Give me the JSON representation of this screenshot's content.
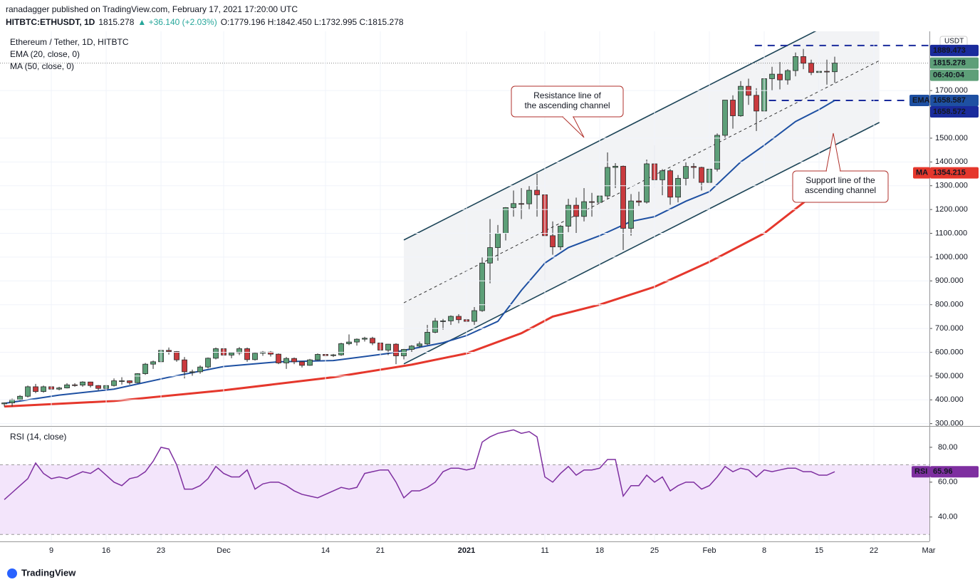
{
  "header": {
    "published": "ranadagger published on TradingView.com, February 17, 2021 17:20:00 UTC",
    "quote": [
      {
        "text": "HITBTC:ETHUSDT, 1D",
        "color": "#131722"
      },
      {
        "text": "1815.278",
        "color": "#131722"
      },
      {
        "text": "▲ +36.140 (+2.03%)",
        "color": "#26a69a"
      },
      {
        "text": "O:1779.196 H:1842.450 L:1732.995 C:1815.278",
        "color": "#131722"
      }
    ]
  },
  "footer": {
    "brand": "TradingView"
  },
  "chart_data": {
    "type": "candlestick",
    "legend": [
      "Ethereum / Tether, 1D, HITBTC",
      "EMA (20, close, 0)",
      "MA (50, close, 0)"
    ],
    "currency": "USDT",
    "countdown": "06:40:04",
    "up_color": "#5d9f78",
    "down_color": "#c93a3e",
    "xlim": [
      -0.55,
      118.09
    ],
    "ylim": [
      290,
      1949
    ],
    "xticks": [
      {
        "value": 6,
        "label": "9"
      },
      {
        "value": 13,
        "label": "16"
      },
      {
        "value": 20,
        "label": "23"
      },
      {
        "value": 28,
        "label": "Dec"
      },
      {
        "value": 41,
        "label": "14"
      },
      {
        "value": 48,
        "label": "21"
      },
      {
        "value": 59,
        "label": "2021"
      },
      {
        "value": 69,
        "label": "11"
      },
      {
        "value": 76,
        "label": "18"
      },
      {
        "value": 83,
        "label": "25"
      },
      {
        "value": 90,
        "label": "Feb"
      },
      {
        "value": 97,
        "label": "8"
      },
      {
        "value": 104,
        "label": "15"
      },
      {
        "value": 111,
        "label": "22"
      },
      {
        "value": 118,
        "label": "Mar"
      }
    ],
    "yticks": [
      {
        "value": 300,
        "label": "300.000"
      },
      {
        "value": 400,
        "label": "400.000"
      },
      {
        "value": 500,
        "label": "500.000"
      },
      {
        "value": 600,
        "label": "600.000"
      },
      {
        "value": 700,
        "label": "700.000"
      },
      {
        "value": 800,
        "label": "800.000"
      },
      {
        "value": 900,
        "label": "900.000"
      },
      {
        "value": 1000,
        "label": "1000.000"
      },
      {
        "value": 1100,
        "label": "1100.000"
      },
      {
        "value": 1200,
        "label": "1200.000"
      },
      {
        "value": 1300,
        "label": "1300.000"
      },
      {
        "value": 1400,
        "label": "1400.000"
      },
      {
        "value": 1500,
        "label": "1500.000"
      },
      {
        "value": 1700,
        "label": "1700.000"
      }
    ],
    "grid": true,
    "candles": [
      [
        383,
        389,
        372,
        387
      ],
      [
        387,
        405,
        372,
        401
      ],
      [
        401,
        420,
        395,
        415
      ],
      [
        415,
        460,
        410,
        455
      ],
      [
        455,
        467,
        428,
        435
      ],
      [
        435,
        460,
        430,
        455
      ],
      [
        455,
        460,
        432,
        445
      ],
      [
        445,
        455,
        440,
        450
      ],
      [
        450,
        470,
        448,
        463
      ],
      [
        463,
        470,
        455,
        462
      ],
      [
        462,
        478,
        455,
        475
      ],
      [
        475,
        476,
        452,
        460
      ],
      [
        460,
        462,
        440,
        448
      ],
      [
        448,
        465,
        443,
        460
      ],
      [
        460,
        490,
        456,
        480
      ],
      [
        480,
        495,
        464,
        480
      ],
      [
        480,
        482,
        464,
        472
      ],
      [
        472,
        512,
        470,
        510
      ],
      [
        510,
        555,
        505,
        550
      ],
      [
        550,
        565,
        530,
        560
      ],
      [
        560,
        615,
        552,
        608
      ],
      [
        608,
        620,
        590,
        603
      ],
      [
        603,
        605,
        560,
        568
      ],
      [
        568,
        580,
        490,
        518
      ],
      [
        518,
        527,
        500,
        518
      ],
      [
        518,
        545,
        510,
        538
      ],
      [
        538,
        578,
        532,
        575
      ],
      [
        575,
        620,
        570,
        615
      ],
      [
        615,
        637,
        568,
        588
      ],
      [
        588,
        600,
        575,
        598
      ],
      [
        598,
        622,
        588,
        615
      ],
      [
        615,
        620,
        560,
        569
      ],
      [
        569,
        598,
        565,
        596
      ],
      [
        596,
        605,
        585,
        601
      ],
      [
        601,
        605,
        582,
        592
      ],
      [
        592,
        595,
        550,
        555
      ],
      [
        555,
        580,
        530,
        574
      ],
      [
        574,
        578,
        550,
        560
      ],
      [
        560,
        562,
        536,
        545
      ],
      [
        545,
        572,
        543,
        568
      ],
      [
        568,
        595,
        565,
        591
      ],
      [
        591,
        592,
        578,
        586
      ],
      [
        586,
        593,
        580,
        589
      ],
      [
        589,
        640,
        585,
        636
      ],
      [
        636,
        675,
        630,
        643
      ],
      [
        643,
        658,
        628,
        655
      ],
      [
        655,
        665,
        645,
        659
      ],
      [
        659,
        665,
        630,
        639
      ],
      [
        639,
        640,
        590,
        609
      ],
      [
        609,
        635,
        588,
        634
      ],
      [
        634,
        638,
        550,
        585
      ],
      [
        585,
        614,
        570,
        612
      ],
      [
        612,
        630,
        600,
        626
      ],
      [
        626,
        645,
        620,
        635
      ],
      [
        635,
        715,
        630,
        684
      ],
      [
        684,
        744,
        680,
        731
      ],
      [
        731,
        740,
        695,
        732
      ],
      [
        732,
        755,
        715,
        751
      ],
      [
        751,
        760,
        722,
        737
      ],
      [
        737,
        750,
        715,
        730
      ],
      [
        730,
        790,
        715,
        775
      ],
      [
        775,
        1000,
        770,
        975
      ],
      [
        975,
        1160,
        890,
        1040
      ],
      [
        1040,
        1135,
        985,
        1100
      ],
      [
        1100,
        1210,
        1070,
        1208
      ],
      [
        1208,
        1280,
        1170,
        1225
      ],
      [
        1225,
        1290,
        1160,
        1224
      ],
      [
        1224,
        1300,
        1200,
        1281
      ],
      [
        1281,
        1350,
        1170,
        1262
      ],
      [
        1262,
        1265,
        900,
        1090
      ],
      [
        1090,
        1150,
        1010,
        1043
      ],
      [
        1043,
        1135,
        1030,
        1130
      ],
      [
        1130,
        1245,
        1105,
        1218
      ],
      [
        1218,
        1250,
        1100,
        1171
      ],
      [
        1171,
        1290,
        1150,
        1233
      ],
      [
        1233,
        1270,
        1170,
        1230
      ],
      [
        1230,
        1260,
        1200,
        1257
      ],
      [
        1257,
        1440,
        1245,
        1377
      ],
      [
        1377,
        1395,
        1290,
        1382
      ],
      [
        1382,
        1385,
        1030,
        1121
      ],
      [
        1121,
        1265,
        1090,
        1236
      ],
      [
        1236,
        1275,
        1215,
        1231
      ],
      [
        1231,
        1410,
        1225,
        1392
      ],
      [
        1392,
        1470,
        1290,
        1325
      ],
      [
        1325,
        1370,
        1260,
        1363
      ],
      [
        1363,
        1370,
        1220,
        1252
      ],
      [
        1252,
        1345,
        1230,
        1331
      ],
      [
        1331,
        1400,
        1300,
        1381
      ],
      [
        1381,
        1395,
        1330,
        1377
      ],
      [
        1377,
        1380,
        1280,
        1314
      ],
      [
        1314,
        1380,
        1300,
        1370
      ],
      [
        1370,
        1520,
        1360,
        1512
      ],
      [
        1512,
        1660,
        1500,
        1660
      ],
      [
        1660,
        1680,
        1540,
        1594
      ],
      [
        1594,
        1740,
        1590,
        1718
      ],
      [
        1718,
        1750,
        1640,
        1680
      ],
      [
        1680,
        1710,
        1530,
        1614
      ],
      [
        1614,
        1780,
        1570,
        1750
      ],
      [
        1750,
        1800,
        1700,
        1769
      ],
      [
        1769,
        1820,
        1705,
        1745
      ],
      [
        1745,
        1790,
        1725,
        1784
      ],
      [
        1784,
        1860,
        1760,
        1843
      ],
      [
        1843,
        1875,
        1790,
        1815
      ],
      [
        1815,
        1830,
        1765,
        1776
      ],
      [
        1776,
        1800,
        1660,
        1781
      ],
      [
        1781,
        1830,
        1725,
        1779
      ],
      [
        1779.196,
        1842.45,
        1732.995,
        1815.278
      ]
    ],
    "ema": {
      "name": "EMA",
      "color": "#1e50a2",
      "x": [
        0,
        7,
        14,
        21,
        28,
        35,
        42,
        49,
        56,
        59,
        63,
        66,
        69,
        72,
        76,
        80,
        83,
        87,
        90,
        94,
        97,
        101,
        104,
        106
      ],
      "values": [
        385,
        420,
        445,
        495,
        540,
        560,
        565,
        595,
        640,
        670,
        730,
        860,
        975,
        1040,
        1090,
        1150,
        1170,
        1235,
        1275,
        1400,
        1470,
        1570,
        1620,
        1658.587
      ]
    },
    "ma": {
      "name": "MA",
      "color": "#e5372c",
      "x": [
        0,
        14,
        28,
        42,
        52,
        59,
        66,
        70,
        76,
        83,
        90,
        97,
        104,
        106
      ],
      "values": [
        372,
        395,
        440,
        495,
        548,
        595,
        680,
        750,
        800,
        875,
        980,
        1100,
        1280,
        1354.215
      ]
    },
    "hlines": [
      {
        "value": 1889.473,
        "from": 95.8,
        "color": "#1a2b9c"
      },
      {
        "value": 1658.572,
        "from": 97.6,
        "color": "#1a2b9c"
      }
    ],
    "channel": {
      "resistance": [
        [
          51,
          1072
        ],
        [
          111.7,
          2086
        ]
      ],
      "middle": [
        [
          51,
          808
        ],
        [
          111.7,
          1826
        ]
      ],
      "support": [
        [
          51,
          551
        ],
        [
          111.7,
          1566
        ]
      ]
    },
    "annotations": [
      {
        "lines": [
          "Resistance line of",
          "the ascending channel"
        ]
      },
      {
        "lines": [
          "Support line of the",
          "ascending channel"
        ]
      }
    ],
    "rsi": {
      "name": "RSI",
      "title": "RSI (14, close)",
      "color": "#7e2fa0",
      "ylim": [
        26,
        91.4
      ],
      "yticks": [
        {
          "value": 80,
          "label": "80.00"
        },
        {
          "value": 60,
          "label": "60.00"
        },
        {
          "value": 40,
          "label": "40.00"
        }
      ],
      "band": [
        30,
        70
      ],
      "values": [
        50,
        54,
        58,
        62,
        71,
        65,
        62,
        63,
        62,
        64,
        66,
        65,
        68,
        64,
        60,
        58,
        62,
        63,
        66,
        72,
        80,
        79,
        70,
        56,
        56,
        58,
        62,
        69,
        65,
        63,
        63,
        67,
        56,
        59,
        60,
        60,
        58,
        55,
        53,
        52,
        51,
        53,
        55,
        57,
        56,
        57,
        65,
        66,
        67,
        67,
        60,
        51,
        55,
        55,
        57,
        60,
        66,
        68,
        68,
        67,
        68,
        83,
        86,
        88,
        89,
        90,
        88,
        89,
        86,
        63,
        60,
        65,
        69,
        64,
        67,
        67,
        68,
        73,
        73,
        52,
        58,
        58,
        64,
        60,
        63,
        55,
        58,
        60,
        60,
        56,
        58,
        63,
        69,
        66,
        68,
        67,
        63,
        67,
        66,
        67,
        68,
        68,
        66,
        66,
        64,
        64,
        65.96
      ]
    }
  }
}
